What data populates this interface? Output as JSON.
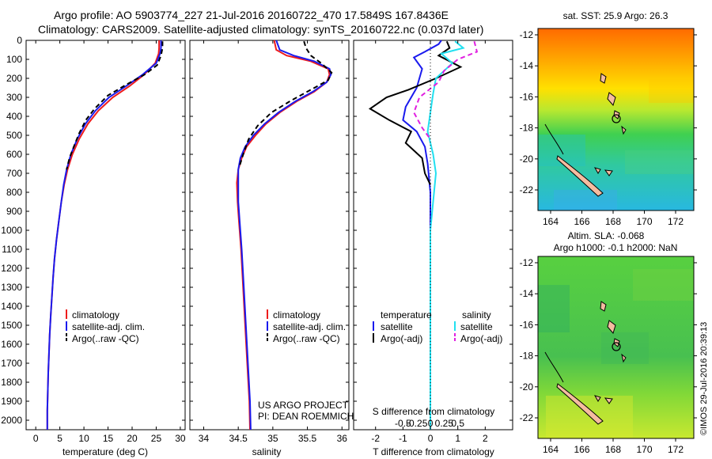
{
  "header": {
    "title_line1": "Argo profile: AO 5903774_227 21-Jul-2016 20160722_470 17.5849S 167.8436E",
    "title_line2": "Climatology: CARS2009. Satellite-adjusted climatology: synTS_20160722.nc (0.037d later)"
  },
  "colors": {
    "climatology": "#ee1c1c",
    "satellite": "#1a1aee",
    "argo": "#000000",
    "satellite_salinity": "#22e0f0",
    "argo_salinity": "#e020e0"
  },
  "depth_axis": {
    "ticks": [
      0,
      100,
      200,
      300,
      400,
      500,
      600,
      700,
      800,
      900,
      1000,
      1100,
      1200,
      1300,
      1400,
      1500,
      1600,
      1700,
      1800,
      1900,
      2000
    ],
    "tick_labels": [
      "0",
      "100",
      "200",
      "300",
      "400",
      "500",
      "600",
      "700",
      "800",
      "900",
      "1000",
      "1100",
      "1200",
      "1300",
      "1400",
      "1500",
      "1600",
      "1700",
      "1800",
      "1900",
      "2000"
    ],
    "range": [
      0,
      2050
    ]
  },
  "chart_data": [
    {
      "id": "temperature",
      "type": "line",
      "xlabel": "temperature (deg C)",
      "ylabel": "depth",
      "xlim": [
        -2,
        31
      ],
      "ylim": [
        2050,
        0
      ],
      "xticks": [
        0,
        5,
        10,
        15,
        20,
        25,
        30
      ],
      "xtick_labels": [
        "0",
        "5",
        "10",
        "15",
        "20",
        "25",
        "30"
      ],
      "legend": [
        "climatology",
        "satellite-adj. clim.",
        "Argo(..raw -QC)"
      ],
      "series": [
        {
          "name": "climatology",
          "color": "#ee1c1c",
          "dash": "",
          "points": [
            [
              25.6,
              0
            ],
            [
              25.6,
              40
            ],
            [
              25.5,
              70
            ],
            [
              24.8,
              120
            ],
            [
              22.5,
              180
            ],
            [
              19.5,
              240
            ],
            [
              16,
              300
            ],
            [
              13,
              370
            ],
            [
              10.8,
              440
            ],
            [
              9.0,
              520
            ],
            [
              7.6,
              600
            ],
            [
              6.6,
              680
            ],
            [
              5.9,
              760
            ],
            [
              5.3,
              850
            ],
            [
              4.8,
              950
            ],
            [
              4.3,
              1050
            ],
            [
              3.9,
              1150
            ],
            [
              3.6,
              1250
            ],
            [
              3.35,
              1350
            ],
            [
              3.1,
              1450
            ],
            [
              2.9,
              1550
            ],
            [
              2.75,
              1650
            ],
            [
              2.6,
              1750
            ],
            [
              2.5,
              1850
            ],
            [
              2.4,
              1950
            ],
            [
              2.4,
              2050
            ]
          ]
        },
        {
          "name": "satellite-adj. clim.",
          "color": "#1a1aee",
          "dash": "",
          "points": [
            [
              26,
              0
            ],
            [
              26,
              40
            ],
            [
              25.8,
              70
            ],
            [
              25,
              120
            ],
            [
              22.2,
              180
            ],
            [
              18.8,
              240
            ],
            [
              15.2,
              300
            ],
            [
              12.4,
              370
            ],
            [
              10.3,
              440
            ],
            [
              8.6,
              520
            ],
            [
              7.3,
              600
            ],
            [
              6.4,
              680
            ],
            [
              5.8,
              760
            ],
            [
              5.3,
              850
            ],
            [
              4.8,
              950
            ],
            [
              4.3,
              1050
            ],
            [
              3.9,
              1150
            ],
            [
              3.6,
              1250
            ],
            [
              3.35,
              1350
            ],
            [
              3.1,
              1450
            ],
            [
              2.9,
              1550
            ],
            [
              2.75,
              1650
            ],
            [
              2.6,
              1750
            ],
            [
              2.5,
              1850
            ],
            [
              2.4,
              1950
            ],
            [
              2.4,
              2050
            ]
          ]
        },
        {
          "name": "Argo(..raw -QC)",
          "color": "#000000",
          "dash": "6,4",
          "points": [
            [
              26.3,
              5
            ],
            [
              26.3,
              40
            ],
            [
              26.0,
              80
            ],
            [
              25.2,
              130
            ],
            [
              22.6,
              180
            ],
            [
              19.0,
              230
            ],
            [
              15.0,
              290
            ],
            [
              12.2,
              360
            ],
            [
              10.4,
              420
            ],
            [
              9.0,
              490
            ],
            [
              7.9,
              560
            ],
            [
              7.0,
              620
            ],
            [
              6.4,
              680
            ]
          ]
        }
      ]
    },
    {
      "id": "salinity",
      "type": "line",
      "xlabel": "salinity",
      "ylabel": "",
      "xlim": [
        33.8,
        36.1
      ],
      "ylim": [
        2050,
        0
      ],
      "xticks": [
        34,
        34.5,
        35,
        35.5,
        36
      ],
      "xtick_labels": [
        "34",
        "34.5",
        "35",
        "35.5",
        "36"
      ],
      "legend": [
        "climatology",
        "satellite-adj. clim.",
        "Argo(..raw -QC)"
      ],
      "annotation": [
        "US ARGO PROJECT",
        "PI: DEAN ROEMMICH"
      ],
      "series": [
        {
          "name": "climatology",
          "color": "#ee1c1c",
          "dash": "",
          "points": [
            [
              35.02,
              0
            ],
            [
              35.05,
              50
            ],
            [
              35.2,
              80
            ],
            [
              35.55,
              110
            ],
            [
              35.8,
              150
            ],
            [
              35.82,
              180
            ],
            [
              35.78,
              220
            ],
            [
              35.6,
              270
            ],
            [
              35.35,
              320
            ],
            [
              35.1,
              380
            ],
            [
              34.9,
              440
            ],
            [
              34.75,
              500
            ],
            [
              34.62,
              560
            ],
            [
              34.55,
              620
            ],
            [
              34.5,
              680
            ],
            [
              34.48,
              750
            ],
            [
              34.49,
              850
            ],
            [
              34.51,
              950
            ],
            [
              34.54,
              1100
            ],
            [
              34.57,
              1300
            ],
            [
              34.6,
              1500
            ],
            [
              34.63,
              1700
            ],
            [
              34.66,
              1900
            ],
            [
              34.67,
              2050
            ]
          ]
        },
        {
          "name": "satellite-adj. clim.",
          "color": "#1a1aee",
          "dash": "",
          "points": [
            [
              35.05,
              0
            ],
            [
              35.1,
              50
            ],
            [
              35.3,
              80
            ],
            [
              35.6,
              110
            ],
            [
              35.82,
              150
            ],
            [
              35.84,
              180
            ],
            [
              35.78,
              220
            ],
            [
              35.58,
              270
            ],
            [
              35.33,
              320
            ],
            [
              35.08,
              380
            ],
            [
              34.88,
              440
            ],
            [
              34.72,
              500
            ],
            [
              34.6,
              560
            ],
            [
              34.53,
              620
            ],
            [
              34.5,
              680
            ],
            [
              34.5,
              750
            ],
            [
              34.5,
              850
            ],
            [
              34.52,
              950
            ],
            [
              34.55,
              1100
            ],
            [
              34.58,
              1300
            ],
            [
              34.61,
              1500
            ],
            [
              34.64,
              1700
            ],
            [
              34.67,
              1900
            ],
            [
              34.68,
              2050
            ]
          ]
        },
        {
          "name": "Argo(..raw -QC)",
          "color": "#000000",
          "dash": "6,4",
          "points": [
            [
              35.45,
              5
            ],
            [
              35.48,
              40
            ],
            [
              35.55,
              80
            ],
            [
              35.7,
              120
            ],
            [
              35.85,
              170
            ],
            [
              35.8,
              210
            ],
            [
              35.55,
              260
            ],
            [
              35.25,
              320
            ],
            [
              34.98,
              380
            ],
            [
              34.78,
              450
            ],
            [
              34.65,
              520
            ],
            [
              34.58,
              590
            ],
            [
              34.52,
              660
            ]
          ]
        }
      ]
    },
    {
      "id": "difference",
      "type": "line",
      "xlabel": "T difference from climatology",
      "xlabel_top": "S difference from climatology",
      "xlim": [
        -2.8,
        3
      ],
      "ylim": [
        2050,
        0
      ],
      "xticks": [
        -2,
        -1,
        0,
        1,
        2
      ],
      "xtick_labels": [
        "-2",
        "-1",
        "0",
        "1",
        "2"
      ],
      "s_xticks": [
        -1,
        -0.5,
        0,
        0.5,
        1
      ],
      "s_xtick_labels": [
        "-0.5",
        "-0.25",
        "0",
        "0.25",
        "0.5"
      ],
      "legend_temperature_header": "temperature",
      "legend_salinity_header": "salinity",
      "legend": [
        "satellite",
        "Argo(-adj)",
        "satellite",
        "Argo(-adj)"
      ],
      "series": [
        {
          "name": "temperature satellite",
          "color": "#1a1aee",
          "dash": "",
          "points": [
            [
              0.4,
              0
            ],
            [
              0.3,
              20
            ],
            [
              -0.2,
              60
            ],
            [
              -0.6,
              90
            ],
            [
              -0.3,
              150
            ],
            [
              -0.5,
              250
            ],
            [
              -0.9,
              350
            ],
            [
              -1.0,
              420
            ],
            [
              -0.5,
              480
            ],
            [
              -0.2,
              560
            ],
            [
              -0.1,
              650
            ],
            [
              0,
              800
            ],
            [
              0,
              1000
            ],
            [
              0,
              2050
            ]
          ]
        },
        {
          "name": "temperature Argo(-adj)",
          "color": "#000000",
          "dash": "",
          "points": [
            [
              0.6,
              5
            ],
            [
              0.7,
              40
            ],
            [
              0.3,
              80
            ],
            [
              1.1,
              140
            ],
            [
              0.2,
              200
            ],
            [
              -0.8,
              260
            ],
            [
              -1.6,
              300
            ],
            [
              -2.2,
              360
            ],
            [
              -1.5,
              420
            ],
            [
              -0.7,
              480
            ],
            [
              -0.9,
              540
            ],
            [
              -0.3,
              620
            ],
            [
              -0.2,
              700
            ],
            [
              0,
              760
            ]
          ]
        },
        {
          "name": "salinity satellite",
          "color": "#22e0f0",
          "dash": "",
          "points": [
            [
              0.9,
              5
            ],
            [
              1.2,
              40
            ],
            [
              0.4,
              70
            ],
            [
              0.8,
              120
            ],
            [
              0.2,
              200
            ],
            [
              0.1,
              280
            ],
            [
              0,
              380
            ],
            [
              -0.1,
              480
            ],
            [
              0.1,
              600
            ],
            [
              0.2,
              700
            ],
            [
              0.1,
              850
            ],
            [
              0,
              1000
            ],
            [
              0,
              2050
            ]
          ]
        },
        {
          "name": "salinity Argo(-adj)",
          "color": "#e020e0",
          "dash": "6,4",
          "points": [
            [
              1.6,
              5
            ],
            [
              1.7,
              60
            ],
            [
              1.0,
              100
            ],
            [
              0.5,
              160
            ],
            [
              0.3,
              220
            ],
            [
              -0.4,
              300
            ],
            [
              -0.6,
              380
            ],
            [
              -0.3,
              460
            ],
            [
              0,
              520
            ]
          ]
        }
      ]
    }
  ],
  "map_sst": {
    "title": "sat. SST: 25.9  Argo: 26.3",
    "yticks": [
      "-12",
      "-14",
      "-16",
      "-18",
      "-20",
      "-22"
    ],
    "xticks": [
      "164",
      "166",
      "168",
      "170",
      "172"
    ]
  },
  "map_sla": {
    "title_line1": "Altim. SLA: -0.068",
    "title_line2": "Argo h1000: -0.1  h2000: NaN",
    "yticks": [
      "-12",
      "-14",
      "-16",
      "-18",
      "-20",
      "-22"
    ],
    "xticks": [
      "164",
      "166",
      "168",
      "170",
      "172"
    ]
  },
  "credit": "©IMOS 29-Jul-2016 20:39:13"
}
